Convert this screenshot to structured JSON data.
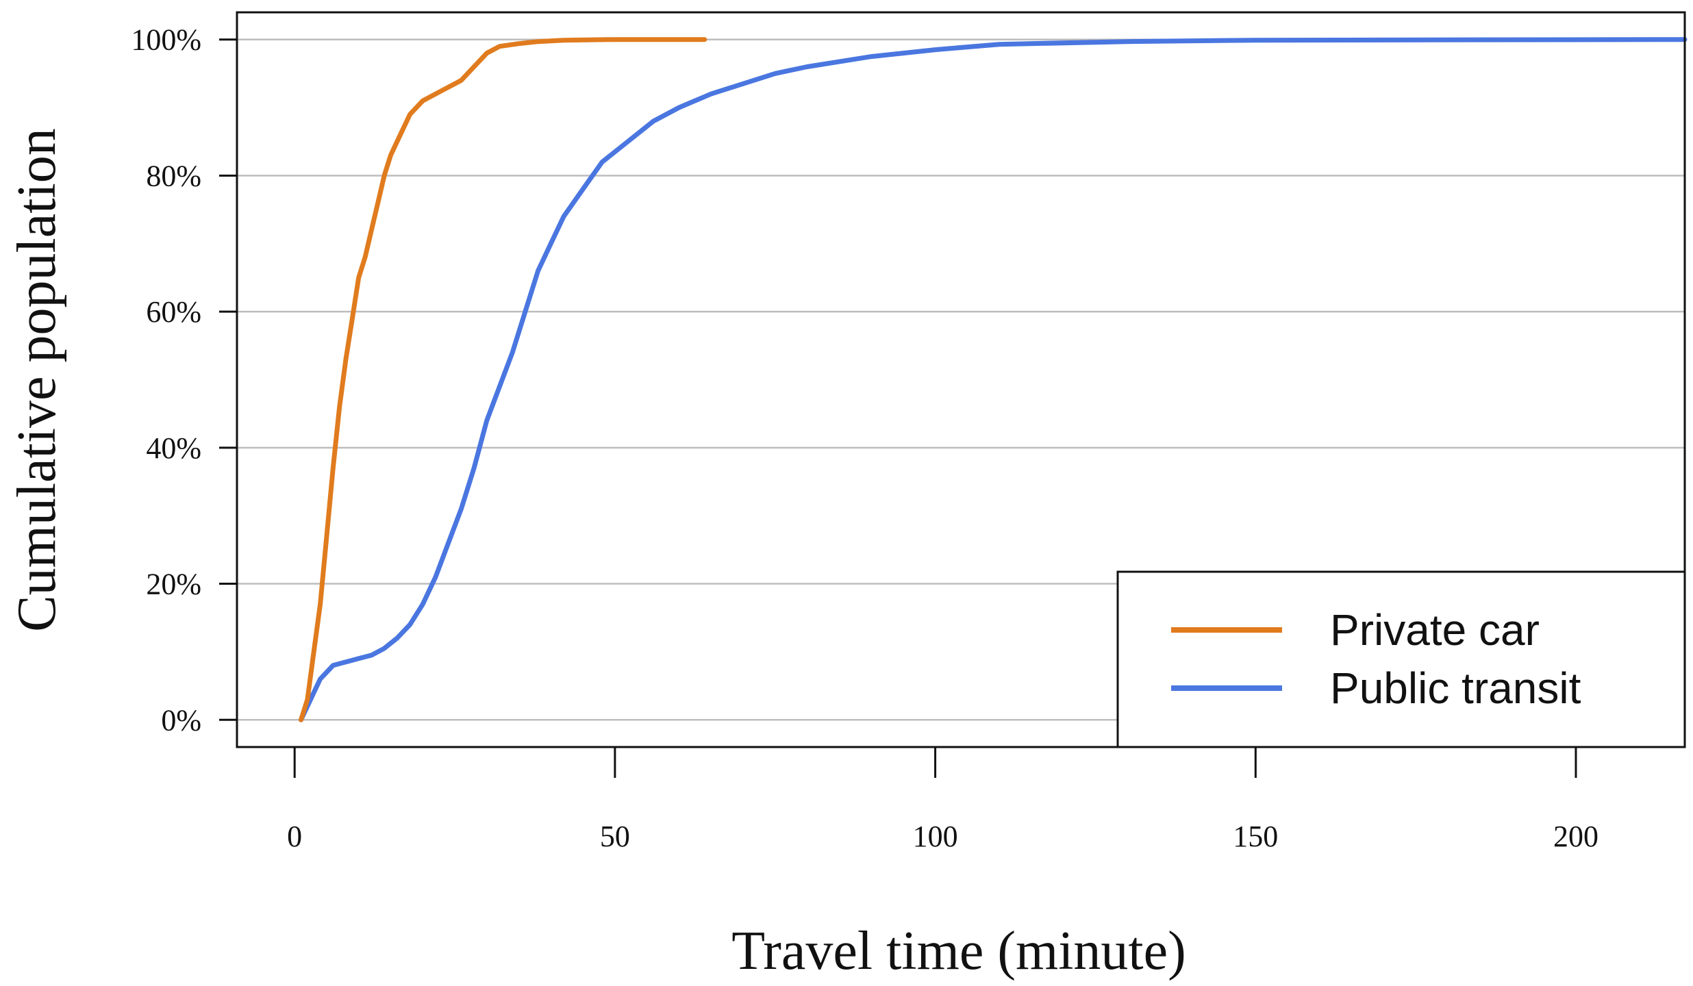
{
  "chart_data": {
    "type": "line",
    "title": "",
    "xlabel": "Travel time (minute)",
    "ylabel": "Cumulative population",
    "xlim": [
      -9,
      217
    ],
    "ylim": [
      -4,
      104
    ],
    "x_ticks": [
      0,
      50,
      100,
      150,
      200
    ],
    "x_tick_labels": [
      "0",
      "50",
      "100",
      "150",
      "200"
    ],
    "y_ticks": [
      0,
      20,
      40,
      60,
      80,
      100
    ],
    "y_tick_labels": [
      "0%",
      "20%",
      "40%",
      "60%",
      "80%",
      "100%"
    ],
    "grid": "horizontal",
    "legend_position": "bottom-right",
    "series": [
      {
        "name": "Private car",
        "color": "#E07B1E",
        "points": [
          [
            1,
            0
          ],
          [
            2,
            3
          ],
          [
            3,
            10
          ],
          [
            4,
            17
          ],
          [
            5,
            27
          ],
          [
            6,
            37
          ],
          [
            7,
            46
          ],
          [
            8,
            53
          ],
          [
            9,
            59
          ],
          [
            10,
            65
          ],
          [
            11,
            68
          ],
          [
            12,
            72
          ],
          [
            13,
            76
          ],
          [
            14,
            80
          ],
          [
            15,
            83
          ],
          [
            16,
            85
          ],
          [
            17,
            87
          ],
          [
            18,
            89
          ],
          [
            19,
            90
          ],
          [
            20,
            91
          ],
          [
            22,
            92
          ],
          [
            24,
            93
          ],
          [
            26,
            94
          ],
          [
            28,
            96
          ],
          [
            30,
            98
          ],
          [
            32,
            99
          ],
          [
            35,
            99.4
          ],
          [
            38,
            99.7
          ],
          [
            42,
            99.9
          ],
          [
            50,
            100
          ],
          [
            64,
            100
          ]
        ]
      },
      {
        "name": "Public transit",
        "color": "#4A76E0",
        "points": [
          [
            1,
            0
          ],
          [
            2,
            2
          ],
          [
            3,
            4
          ],
          [
            4,
            6
          ],
          [
            5,
            7
          ],
          [
            6,
            8
          ],
          [
            8,
            8.5
          ],
          [
            10,
            9
          ],
          [
            12,
            9.5
          ],
          [
            14,
            10.5
          ],
          [
            16,
            12
          ],
          [
            18,
            14
          ],
          [
            20,
            17
          ],
          [
            22,
            21
          ],
          [
            24,
            26
          ],
          [
            26,
            31
          ],
          [
            28,
            37
          ],
          [
            30,
            44
          ],
          [
            32,
            49
          ],
          [
            34,
            54
          ],
          [
            36,
            60
          ],
          [
            38,
            66
          ],
          [
            40,
            70
          ],
          [
            42,
            74
          ],
          [
            45,
            78
          ],
          [
            48,
            82
          ],
          [
            52,
            85
          ],
          [
            56,
            88
          ],
          [
            60,
            90
          ],
          [
            65,
            92
          ],
          [
            70,
            93.5
          ],
          [
            75,
            95
          ],
          [
            80,
            96
          ],
          [
            90,
            97.5
          ],
          [
            100,
            98.5
          ],
          [
            110,
            99.3
          ],
          [
            130,
            99.7
          ],
          [
            150,
            99.9
          ],
          [
            217,
            100
          ]
        ]
      }
    ]
  }
}
